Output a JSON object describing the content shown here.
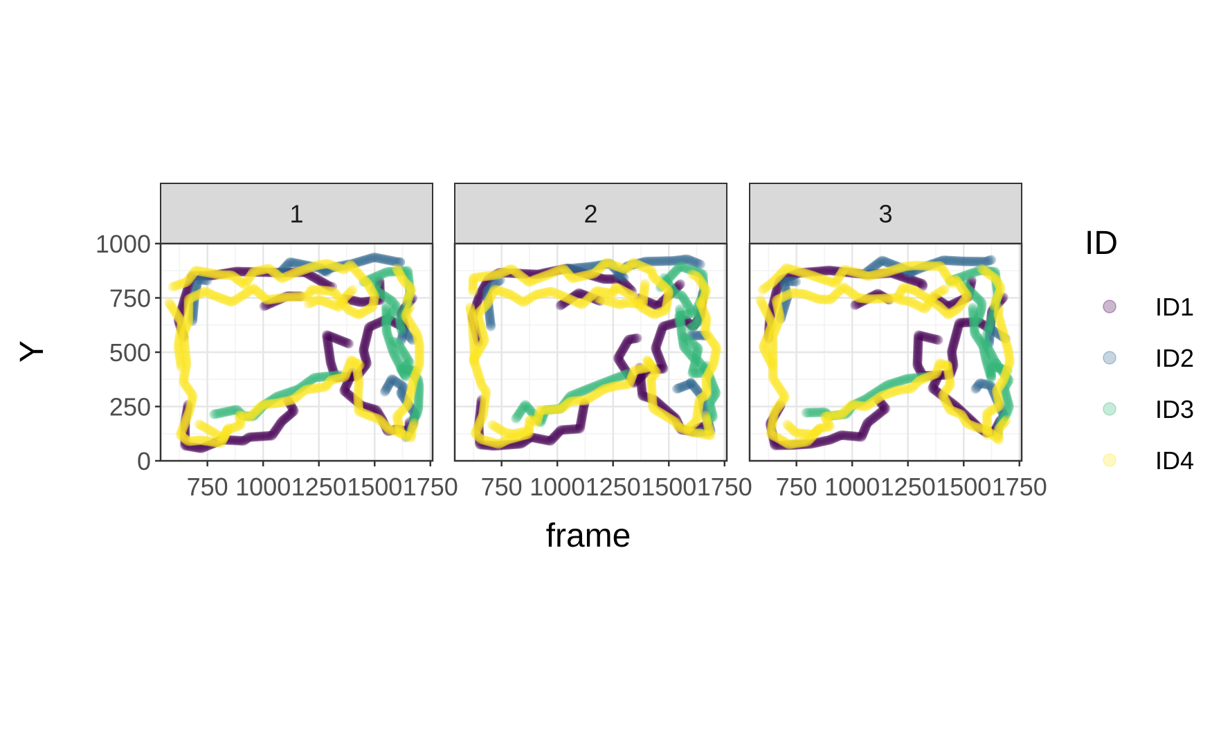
{
  "chart_data": {
    "type": "scatter",
    "facet_variable_values": [
      "1",
      "2",
      "3"
    ],
    "xlabel": "frame",
    "ylabel": "Y",
    "xlim": [
      540,
      1760
    ],
    "ylim": [
      0,
      1000
    ],
    "x_ticks": [
      750,
      1000,
      1250,
      1500,
      1750
    ],
    "x_tick_labels": [
      "750",
      "1000",
      "1250",
      "1500",
      "1750"
    ],
    "y_ticks": [
      0,
      250,
      500,
      750,
      1000
    ],
    "y_tick_labels": [
      "0",
      "250",
      "500",
      "750",
      "1000"
    ],
    "grid": true,
    "legend": {
      "title": "ID",
      "position": "right",
      "entries": [
        "ID1",
        "ID2",
        "ID3",
        "ID4"
      ]
    },
    "colors": {
      "ID1": "#440154",
      "ID2": "#31688e",
      "ID3": "#35b779",
      "ID4": "#fde725"
    },
    "series": [
      {
        "name": "ID1",
        "paths": [
          [
            [
              640,
              560
            ],
            [
              630,
              660
            ],
            [
              650,
              760
            ],
            [
              680,
              840
            ],
            [
              760,
              870
            ],
            [
              900,
              860
            ],
            [
              1050,
              870
            ],
            [
              1200,
              860
            ],
            [
              1300,
              820
            ],
            [
              1320,
              780
            ]
          ],
          [
            [
              1360,
              740
            ],
            [
              1440,
              720
            ],
            [
              1520,
              760
            ],
            [
              1540,
              820
            ]
          ],
          [
            [
              1380,
              560
            ],
            [
              1300,
              560
            ],
            [
              1280,
              460
            ],
            [
              1340,
              380
            ],
            [
              1420,
              400
            ],
            [
              1460,
              430
            ],
            [
              1450,
              520
            ],
            [
              1480,
              620
            ],
            [
              1560,
              640
            ],
            [
              1620,
              620
            ],
            [
              1640,
              680
            ],
            [
              1660,
              760
            ]
          ],
          [
            [
              1380,
              420
            ],
            [
              1380,
              320
            ],
            [
              1440,
              260
            ],
            [
              1500,
              220
            ],
            [
              1540,
              200
            ],
            [
              1560,
              140
            ],
            [
              1600,
              130
            ],
            [
              1640,
              150
            ],
            [
              1680,
              180
            ]
          ],
          [
            [
              660,
              260
            ],
            [
              640,
              170
            ],
            [
              660,
              80
            ],
            [
              720,
              60
            ],
            [
              820,
              80
            ],
            [
              900,
              110
            ],
            [
              960,
              100
            ],
            [
              1020,
              120
            ],
            [
              1090,
              170
            ],
            [
              1140,
              250
            ],
            [
              1110,
              270
            ]
          ],
          [
            [
              1020,
              720
            ],
            [
              1100,
              760
            ],
            [
              1180,
              740
            ]
          ]
        ]
      },
      {
        "name": "ID2",
        "paths": [
          [
            [
              700,
              640
            ],
            [
              690,
              760
            ],
            [
              700,
              820
            ],
            [
              760,
              840
            ]
          ],
          [
            [
              1260,
              860
            ],
            [
              1320,
              900
            ],
            [
              1400,
              910
            ],
            [
              1500,
              920
            ],
            [
              1600,
              930
            ],
            [
              1640,
              910
            ]
          ],
          [
            [
              1540,
              320
            ],
            [
              1580,
              360
            ],
            [
              1620,
              360
            ],
            [
              1640,
              300
            ],
            [
              1660,
              220
            ],
            [
              1680,
              160
            ],
            [
              1640,
              120
            ]
          ],
          [
            [
              1060,
              880
            ],
            [
              1140,
              900
            ],
            [
              1240,
              890
            ],
            [
              1300,
              860
            ]
          ],
          [
            [
              1600,
              560
            ],
            [
              1640,
              600
            ],
            [
              1680,
              560
            ]
          ]
        ]
      },
      {
        "name": "ID3",
        "paths": [
          [
            [
              800,
              200
            ],
            [
              860,
              240
            ],
            [
              920,
              200
            ],
            [
              960,
              220
            ],
            [
              1000,
              240
            ],
            [
              1060,
              300
            ],
            [
              1160,
              340
            ],
            [
              1240,
              370
            ],
            [
              1330,
              400
            ]
          ],
          [
            [
              1460,
              820
            ],
            [
              1560,
              880
            ],
            [
              1640,
              860
            ],
            [
              1660,
              780
            ],
            [
              1640,
              700
            ],
            [
              1620,
              640
            ],
            [
              1600,
              600
            ]
          ],
          [
            [
              1540,
              700
            ],
            [
              1560,
              600
            ],
            [
              1580,
              520
            ],
            [
              1600,
              460
            ],
            [
              1620,
              400
            ],
            [
              1640,
              420
            ],
            [
              1680,
              420
            ]
          ],
          [
            [
              1580,
              560
            ],
            [
              1610,
              520
            ],
            [
              1640,
              470
            ],
            [
              1660,
              430
            ],
            [
              1680,
              380
            ],
            [
              1700,
              330
            ],
            [
              1700,
              260
            ],
            [
              1690,
              200
            ],
            [
              1660,
              180
            ]
          ],
          [
            [
              1500,
              840
            ],
            [
              1520,
              780
            ],
            [
              1560,
              740
            ],
            [
              1600,
              700
            ],
            [
              1560,
              660
            ],
            [
              1540,
              620
            ]
          ]
        ]
      },
      {
        "name": "ID4",
        "paths": [
          [
            [
              600,
              780
            ],
            [
              640,
              840
            ],
            [
              720,
              870
            ],
            [
              800,
              860
            ],
            [
              860,
              840
            ],
            [
              920,
              830
            ],
            [
              960,
              860
            ],
            [
              1020,
              880
            ],
            [
              1080,
              850
            ],
            [
              1160,
              860
            ],
            [
              1220,
              900
            ],
            [
              1300,
              900
            ],
            [
              1360,
              900
            ],
            [
              1400,
              880
            ],
            [
              1440,
              840
            ],
            [
              1480,
              820
            ],
            [
              1500,
              760
            ],
            [
              1480,
              700
            ],
            [
              1440,
              680
            ],
            [
              1380,
              700
            ],
            [
              1320,
              760
            ],
            [
              1280,
              800
            ],
            [
              1240,
              780
            ],
            [
              1180,
              760
            ],
            [
              1100,
              740
            ],
            [
              1020,
              760
            ],
            [
              960,
              780
            ],
            [
              900,
              760
            ],
            [
              860,
              740
            ],
            [
              780,
              760
            ],
            [
              720,
              780
            ],
            [
              680,
              740
            ],
            [
              660,
              660
            ],
            [
              650,
              560
            ],
            [
              640,
              460
            ],
            [
              660,
              360
            ],
            [
              680,
              300
            ],
            [
              660,
              220
            ],
            [
              640,
              130
            ],
            [
              660,
              90
            ],
            [
              720,
              80
            ],
            [
              800,
              100
            ],
            [
              860,
              130
            ],
            [
              880,
              170
            ],
            [
              900,
              200
            ],
            [
              940,
              220
            ],
            [
              1000,
              240
            ],
            [
              1060,
              270
            ],
            [
              1140,
              290
            ],
            [
              1200,
              320
            ],
            [
              1260,
              340
            ],
            [
              1320,
              370
            ],
            [
              1360,
              400
            ],
            [
              1400,
              440
            ],
            [
              1420,
              460
            ],
            [
              1440,
              420
            ],
            [
              1420,
              360
            ],
            [
              1420,
              300
            ],
            [
              1440,
              240
            ],
            [
              1480,
              200
            ],
            [
              1520,
              180
            ],
            [
              1560,
              160
            ],
            [
              1600,
              130
            ],
            [
              1640,
              110
            ],
            [
              1680,
              140
            ],
            [
              1680,
              200
            ]
          ],
          [
            [
              600,
              720
            ],
            [
              620,
              640
            ],
            [
              620,
              520
            ],
            [
              640,
              440
            ]
          ],
          [
            [
              1600,
              880
            ],
            [
              1640,
              840
            ],
            [
              1660,
              780
            ],
            [
              1640,
              720
            ]
          ],
          [
            [
              700,
              160
            ],
            [
              760,
              140
            ],
            [
              820,
              120
            ],
            [
              860,
              140
            ]
          ],
          [
            [
              1200,
              740
            ],
            [
              1260,
              720
            ],
            [
              1320,
              720
            ],
            [
              1380,
              740
            ],
            [
              1400,
              800
            ]
          ],
          [
            [
              1600,
              140
            ],
            [
              1620,
              200
            ],
            [
              1640,
              260
            ],
            [
              1660,
              320
            ],
            [
              1680,
              380
            ],
            [
              1700,
              440
            ],
            [
              1700,
              520
            ],
            [
              1680,
              600
            ],
            [
              1660,
              660
            ],
            [
              1640,
              720
            ]
          ]
        ]
      }
    ]
  }
}
